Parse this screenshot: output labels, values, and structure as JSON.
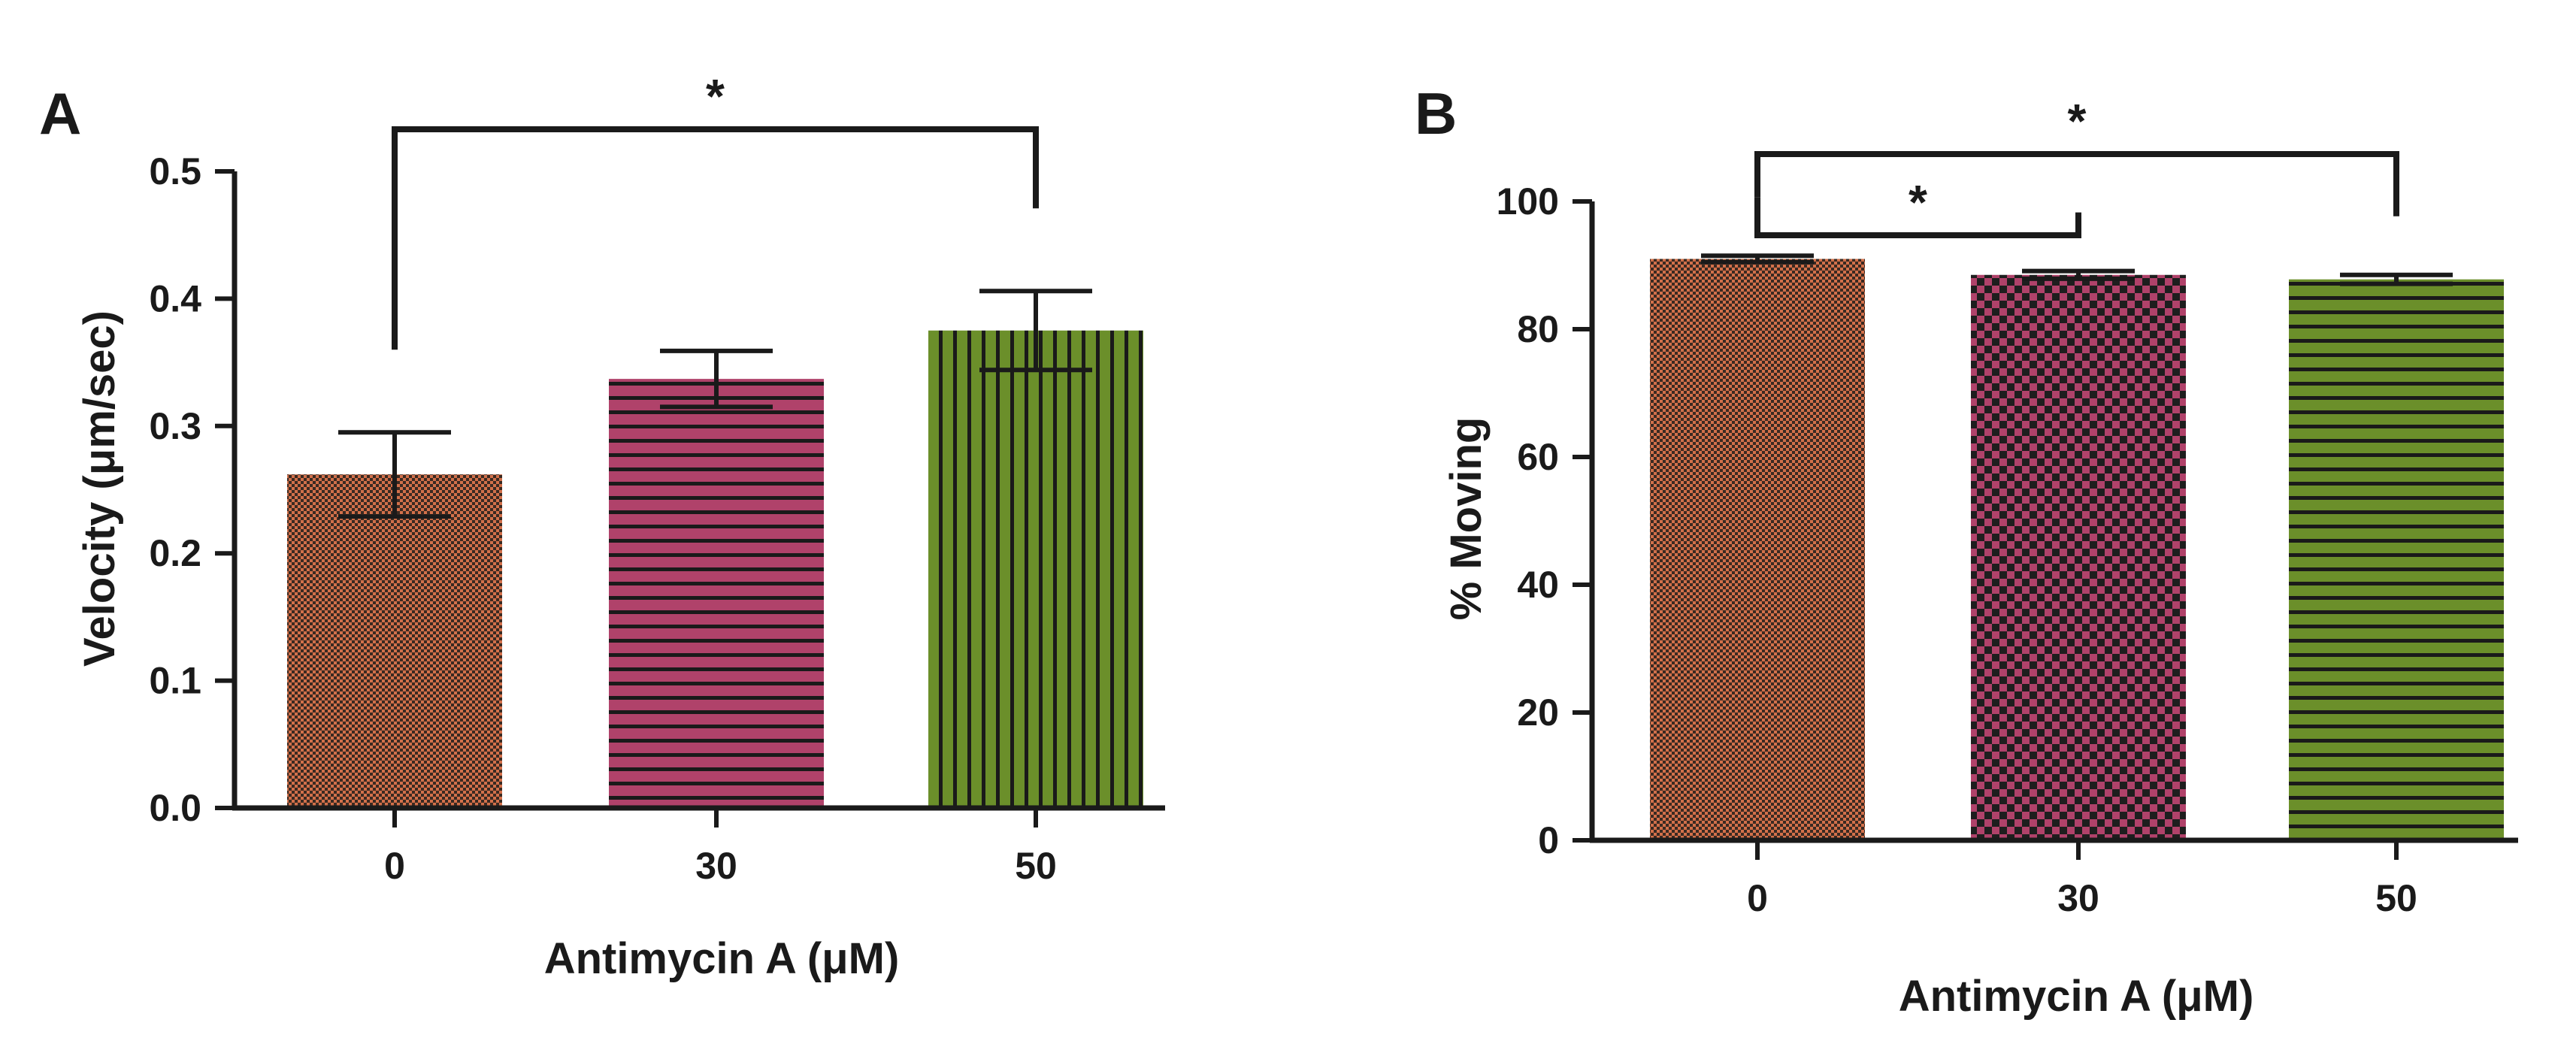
{
  "chart_data": [
    {
      "panel": "A",
      "type": "bar",
      "title": "",
      "xlabel": "Antimycin A (μM)",
      "ylabel": "Velocity (μm/sec)",
      "categories": [
        "0",
        "30",
        "50"
      ],
      "values": [
        0.262,
        0.337,
        0.375
      ],
      "errors": [
        0.033,
        0.022,
        0.031
      ],
      "ylim": [
        0,
        0.5
      ],
      "yticks": [
        "0.0",
        "0.1",
        "0.2",
        "0.3",
        "0.4",
        "0.5"
      ],
      "tick_values": [
        0,
        0.1,
        0.2,
        0.3,
        0.4,
        0.5
      ],
      "colors": [
        "#d2704a",
        "#b0426a",
        "#6b8f2a"
      ],
      "patterns": [
        "checker",
        "hstripe",
        "vstripe"
      ],
      "significance": [
        {
          "from": 0,
          "to": 2,
          "label": "*",
          "level": 1
        }
      ]
    },
    {
      "panel": "B",
      "type": "bar",
      "title": "",
      "xlabel": "Antimycin A (μM)",
      "ylabel": "% Moving",
      "categories": [
        "0",
        "30",
        "50"
      ],
      "values": [
        91,
        88.5,
        87.8
      ],
      "errors": [
        0.5,
        0.6,
        0.7
      ],
      "ylim": [
        0,
        100
      ],
      "yticks": [
        "0",
        "20",
        "40",
        "60",
        "80",
        "100"
      ],
      "tick_values": [
        0,
        20,
        40,
        60,
        80,
        100
      ],
      "colors": [
        "#d2704a",
        "#b0426a",
        "#6b8f2a"
      ],
      "patterns": [
        "checker",
        "checkerlarge",
        "hstripe"
      ],
      "significance": [
        {
          "from": 0,
          "to": 1,
          "label": "*",
          "level": 1
        },
        {
          "from": 0,
          "to": 2,
          "label": "*",
          "level": 2
        }
      ]
    }
  ]
}
